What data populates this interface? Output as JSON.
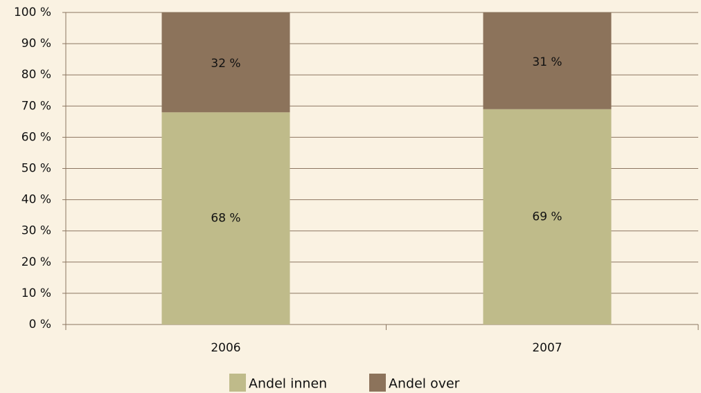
{
  "chart_data": {
    "type": "stacked_bar",
    "categories": [
      "2006",
      "2007"
    ],
    "series": [
      {
        "name": "Andel innen",
        "color": "#bfbb8a",
        "values": [
          68,
          69
        ],
        "value_labels": [
          "68 %",
          "69 %"
        ]
      },
      {
        "name": "Andel over",
        "color": "#8c735b",
        "values": [
          32,
          31
        ],
        "value_labels": [
          "32 %",
          "31 %"
        ]
      }
    ],
    "ylim": [
      0,
      100
    ],
    "yticks": [
      {
        "value": 0,
        "label": "0 %"
      },
      {
        "value": 10,
        "label": "10 %"
      },
      {
        "value": 20,
        "label": "20 %"
      },
      {
        "value": 30,
        "label": "30 %"
      },
      {
        "value": 40,
        "label": "40 %"
      },
      {
        "value": 50,
        "label": "50 %"
      },
      {
        "value": 60,
        "label": "60 %"
      },
      {
        "value": 70,
        "label": "70 %"
      },
      {
        "value": 80,
        "label": "80 %"
      },
      {
        "value": 90,
        "label": "90 %"
      },
      {
        "value": 100,
        "label": "100 %"
      }
    ],
    "grid": true,
    "legend": "bottom"
  }
}
